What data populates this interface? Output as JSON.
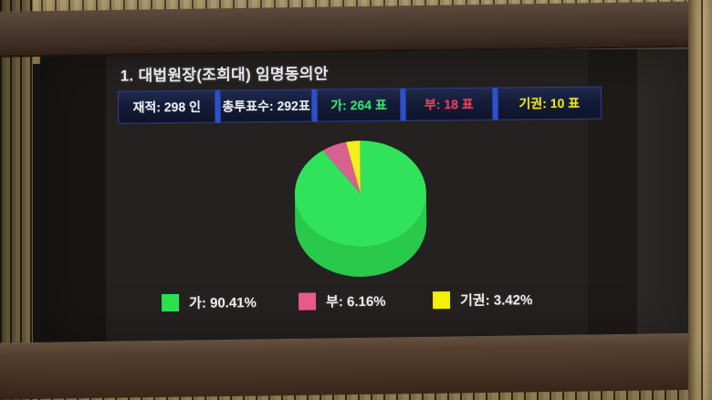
{
  "board": {
    "title": "1. 대법원장(조희대) 임명동의안",
    "stats": [
      {
        "id": "enrolled",
        "label": "재적: 298 인",
        "value": 298,
        "color": "#eceff4"
      },
      {
        "id": "total-votes",
        "label": "총투표수: 292표",
        "value": 292,
        "color": "#eceff4"
      },
      {
        "id": "yes",
        "label": "가: 264 표",
        "value": 264,
        "color": "#35e56a"
      },
      {
        "id": "no",
        "label": "부: 18 표",
        "value": 18,
        "color": "#f23a55"
      },
      {
        "id": "abstain",
        "label": "기권: 10 표",
        "value": 10,
        "color": "#f2e90c"
      }
    ],
    "separator_color": "#2b50d0",
    "box_border_color": "#2c3e8c"
  },
  "chart_data": {
    "type": "pie",
    "style": "3d-pie",
    "title": "1. 대법원장(조희대) 임명동의안",
    "labels": [
      "가",
      "부",
      "기권"
    ],
    "values_percent": [
      90.41,
      6.16,
      3.42
    ],
    "votes": [
      264,
      18,
      10
    ],
    "colors": [
      "#31e25b",
      "#d8618f",
      "#f4ee1e"
    ],
    "side_color": "#29c94b",
    "start_angle_deg": 0,
    "direction": "clockwise",
    "legend_position": "bottom",
    "legend": [
      {
        "label": "가: 90.41%",
        "swatch": "#2ae24f"
      },
      {
        "label": "부: 6.16%",
        "swatch": "#e85a8c"
      },
      {
        "label": "기권: 3.42%",
        "swatch": "#f5ef00"
      }
    ]
  }
}
